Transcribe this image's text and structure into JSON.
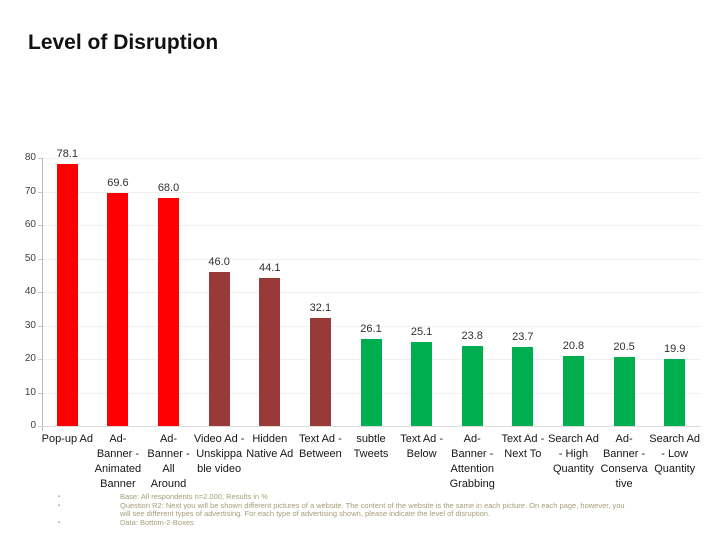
{
  "title": "Level of Disruption",
  "chart_data": {
    "type": "bar",
    "title": "Level of Disruption",
    "categories": [
      "Pop-up Ad",
      "Ad-Banner - Animated Banner",
      "Ad-Banner - All Around",
      "Video Ad - Unskippable video",
      "Hidden Native Ad",
      "Text Ad - Between",
      "subtle Tweets",
      "Text Ad - Below",
      "Ad-Banner - Attention Grabbing",
      "Text Ad - Next To",
      "Search Ad - High Quantity",
      "Ad-Banner - Conservative",
      "Search Ad - Low Quantity"
    ],
    "values": [
      78.1,
      69.6,
      68.0,
      46.0,
      44.1,
      32.1,
      26.1,
      25.1,
      23.8,
      23.7,
      20.8,
      20.5,
      19.9
    ],
    "bar_colors": [
      "#FF0000",
      "#FF0000",
      "#FF0000",
      "#9A3A38",
      "#9A3A38",
      "#9A3A38",
      "#00AE50",
      "#00AE50",
      "#00AE50",
      "#00AE50",
      "#00AE50",
      "#00AE50",
      "#00AE50"
    ],
    "xtick_labels": [
      "Pop-up Ad",
      "Ad-\nBanner -\nAnimated\nBanner",
      "Ad-\nBanner -\nAll\nAround",
      "Video Ad -\nUnskippa\nble video",
      "Hidden\nNative Ad",
      "Text Ad -\nBetween",
      "subtle\nTweets",
      "Text Ad -\nBelow",
      "Ad-\nBanner -\nAttention\nGrabbing",
      "Text Ad -\nNext To",
      "Search Ad\n- High\nQuantity",
      "Ad-\nBanner -\nConserva\ntive",
      "Search Ad\n- Low\nQuantity"
    ],
    "yticks": [
      0,
      10,
      20,
      30,
      40,
      50,
      60,
      70,
      80
    ],
    "ylim": [
      0,
      80
    ],
    "xlabel": "",
    "ylabel": "",
    "grid": true,
    "legend": "none",
    "value_labels": true
  },
  "colors": {
    "high_disruption": "#FF0000",
    "medium_disruption": "#9A3A38",
    "low_disruption": "#00AE50",
    "footnote_text": "#A49E76"
  },
  "footnotes": {
    "bullet": "▪",
    "items": [
      "Base: All respondents n=2.000, Results in %",
      "Question R2: Next you will be shown different pictures of a website. The content of the website is the same in each picture. On each page, however, you\nwill see different types of advertising. For each type of advertising shown, please indicate the level of disruption.",
      "Data: Bottom-2-Boxes"
    ]
  }
}
